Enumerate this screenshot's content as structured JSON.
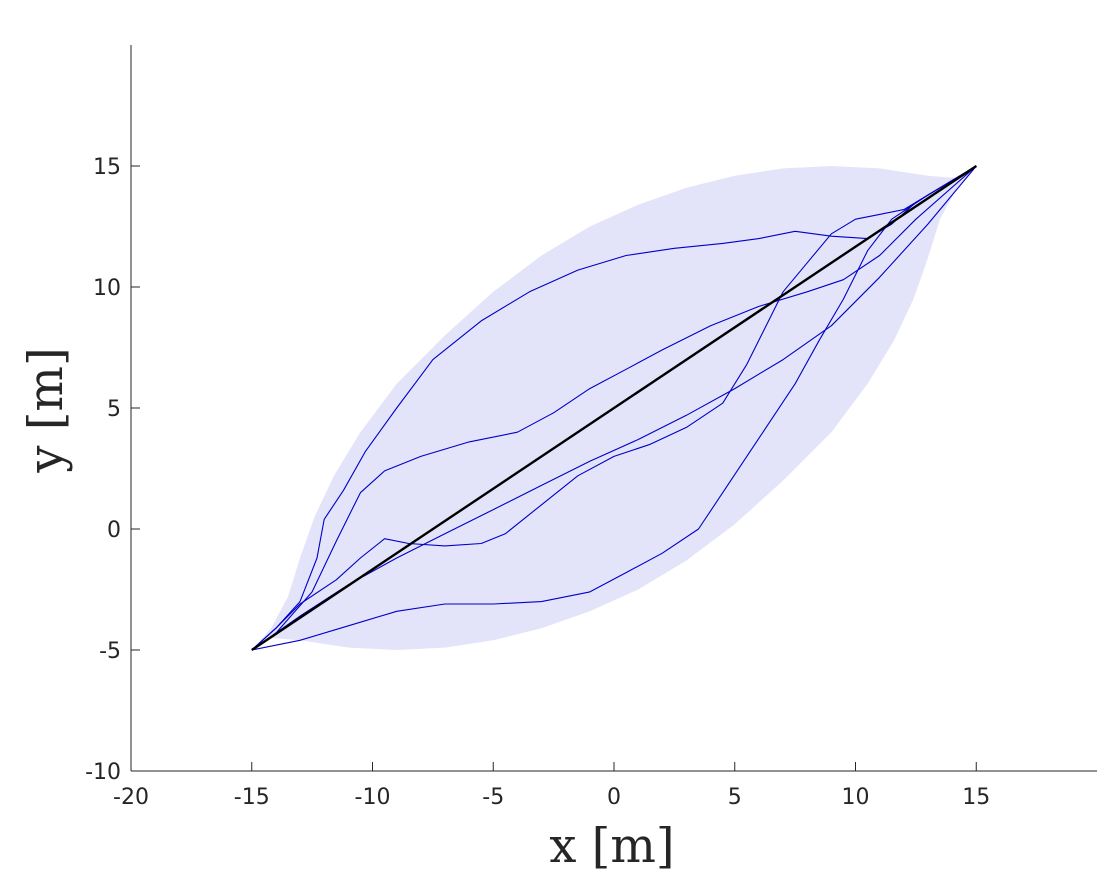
{
  "chart_data": {
    "type": "line",
    "title": "",
    "xlabel": "x [m]",
    "ylabel": "y [m]",
    "xlim": [
      -20,
      20
    ],
    "ylim": [
      -10,
      20
    ],
    "xticks": [
      -20,
      -15,
      -10,
      -5,
      0,
      5,
      10,
      15
    ],
    "yticks": [
      -10,
      -5,
      0,
      5,
      10,
      15
    ],
    "grid": false,
    "colors": {
      "band": "#e3e4f9",
      "reference": "#000000",
      "trajectory": "#0000c8",
      "axis": "#262626"
    },
    "band": {
      "upper": [
        [
          -15,
          -5
        ],
        [
          -14.2,
          -4.1
        ],
        [
          -13.5,
          -2.8
        ],
        [
          -13.0,
          -1.2
        ],
        [
          -12.4,
          0.5
        ],
        [
          -11.6,
          2.2
        ],
        [
          -10.5,
          4.0
        ],
        [
          -9.0,
          6.0
        ],
        [
          -7.0,
          8.0
        ],
        [
          -5.0,
          9.8
        ],
        [
          -3.0,
          11.3
        ],
        [
          -1.0,
          12.5
        ],
        [
          1.0,
          13.4
        ],
        [
          3.0,
          14.1
        ],
        [
          5.0,
          14.6
        ],
        [
          7.0,
          14.9
        ],
        [
          9.0,
          15.0
        ],
        [
          11.0,
          14.9
        ],
        [
          13.0,
          14.6
        ],
        [
          14.2,
          14.5
        ],
        [
          15,
          15
        ]
      ],
      "lower": [
        [
          15,
          15
        ],
        [
          14.2,
          14.1
        ],
        [
          13.5,
          12.8
        ],
        [
          13.0,
          11.2
        ],
        [
          12.4,
          9.5
        ],
        [
          11.6,
          7.8
        ],
        [
          10.5,
          6.0
        ],
        [
          9.0,
          4.0
        ],
        [
          7.0,
          2.0
        ],
        [
          5.0,
          0.2
        ],
        [
          3.0,
          -1.3
        ],
        [
          1.0,
          -2.5
        ],
        [
          -1.0,
          -3.4
        ],
        [
          -3.0,
          -4.1
        ],
        [
          -5.0,
          -4.6
        ],
        [
          -7.0,
          -4.9
        ],
        [
          -9.0,
          -5.0
        ],
        [
          -11.0,
          -4.9
        ],
        [
          -13.0,
          -4.6
        ],
        [
          -14.2,
          -4.5
        ],
        [
          -15,
          -5
        ]
      ]
    },
    "reference": [
      [
        -15,
        -5
      ],
      [
        15,
        15
      ]
    ],
    "series": [
      {
        "values": [
          [
            -15,
            -5
          ],
          [
            -14,
            -4.1
          ],
          [
            -13,
            -3.0
          ],
          [
            -12.3,
            -1.2
          ],
          [
            -12.0,
            0.4
          ],
          [
            -11.2,
            1.6
          ],
          [
            -10.3,
            3.2
          ],
          [
            -9.0,
            5.0
          ],
          [
            -7.5,
            7.0
          ],
          [
            -5.5,
            8.6
          ],
          [
            -3.5,
            9.8
          ],
          [
            -1.5,
            10.7
          ],
          [
            0.5,
            11.3
          ],
          [
            2.5,
            11.6
          ],
          [
            4.5,
            11.8
          ],
          [
            6.0,
            12.0
          ],
          [
            7.5,
            12.3
          ],
          [
            9.0,
            12.1
          ],
          [
            10.5,
            12.0
          ],
          [
            11.5,
            12.6
          ],
          [
            12.5,
            13.5
          ],
          [
            15,
            15
          ]
        ]
      },
      {
        "values": [
          [
            -15,
            -5
          ],
          [
            -14,
            -4.3
          ],
          [
            -12.5,
            -2.6
          ],
          [
            -11.5,
            -0.5
          ],
          [
            -10.5,
            1.5
          ],
          [
            -9.5,
            2.4
          ],
          [
            -8.0,
            3.0
          ],
          [
            -6.0,
            3.6
          ],
          [
            -4.0,
            4.0
          ],
          [
            -2.5,
            4.8
          ],
          [
            -1.0,
            5.8
          ],
          [
            0.5,
            6.6
          ],
          [
            2.0,
            7.4
          ],
          [
            4.0,
            8.4
          ],
          [
            6.0,
            9.2
          ],
          [
            8.0,
            9.8
          ],
          [
            9.5,
            10.3
          ],
          [
            11.0,
            11.3
          ],
          [
            12.5,
            12.8
          ],
          [
            15,
            15
          ]
        ]
      },
      {
        "values": [
          [
            -15,
            -5
          ],
          [
            -14,
            -4.1
          ],
          [
            -13,
            -3.1
          ],
          [
            -11.5,
            -2.1
          ],
          [
            -10.5,
            -1.2
          ],
          [
            -9.5,
            -0.4
          ],
          [
            -8.5,
            -0.6
          ],
          [
            -7.0,
            -0.7
          ],
          [
            -5.5,
            -0.6
          ],
          [
            -4.5,
            -0.2
          ],
          [
            -3.0,
            1.0
          ],
          [
            -1.5,
            2.2
          ],
          [
            0.0,
            3.0
          ],
          [
            1.5,
            3.5
          ],
          [
            3.0,
            4.2
          ],
          [
            4.5,
            5.2
          ],
          [
            5.5,
            6.8
          ],
          [
            6.2,
            8.2
          ],
          [
            7.0,
            9.8
          ],
          [
            8.0,
            11.0
          ],
          [
            9.0,
            12.2
          ],
          [
            10.0,
            12.8
          ],
          [
            11.0,
            13.0
          ],
          [
            12.0,
            13.2
          ],
          [
            15,
            15
          ]
        ]
      },
      {
        "values": [
          [
            -15,
            -5
          ],
          [
            -13,
            -4.6
          ],
          [
            -11,
            -4.0
          ],
          [
            -9.0,
            -3.4
          ],
          [
            -7.0,
            -3.1
          ],
          [
            -5.0,
            -3.1
          ],
          [
            -3.0,
            -3.0
          ],
          [
            -1.0,
            -2.6
          ],
          [
            0.5,
            -1.8
          ],
          [
            2.0,
            -1.0
          ],
          [
            3.5,
            0.0
          ],
          [
            4.5,
            1.5
          ],
          [
            5.5,
            3.0
          ],
          [
            6.5,
            4.5
          ],
          [
            7.5,
            6.0
          ],
          [
            8.5,
            7.8
          ],
          [
            9.5,
            9.5
          ],
          [
            10.5,
            11.5
          ],
          [
            11.5,
            12.8
          ],
          [
            13.0,
            13.8
          ],
          [
            15,
            15
          ]
        ]
      },
      {
        "values": [
          [
            -15,
            -5
          ],
          [
            -13,
            -3.6
          ],
          [
            -11,
            -2.3
          ],
          [
            -9,
            -1.2
          ],
          [
            -7.0,
            -0.2
          ],
          [
            -5.0,
            0.8
          ],
          [
            -3.0,
            1.8
          ],
          [
            -1.0,
            2.8
          ],
          [
            1.0,
            3.7
          ],
          [
            3.0,
            4.7
          ],
          [
            5.0,
            5.8
          ],
          [
            7.0,
            7.0
          ],
          [
            9.0,
            8.4
          ],
          [
            11.0,
            10.4
          ],
          [
            13.0,
            12.6
          ],
          [
            15,
            15
          ]
        ]
      }
    ]
  }
}
